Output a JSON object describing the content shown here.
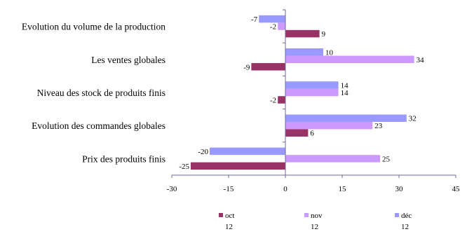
{
  "chart_data": {
    "type": "bar",
    "orientation": "horizontal",
    "categories": [
      "Evolution du volume de la production",
      "Les ventes globales",
      "Niveau des stock de produits finis",
      "Evolution des commandes globales",
      "Prix des produits finis"
    ],
    "series": [
      {
        "name": "oct",
        "sublabel": "12",
        "color": "#993366",
        "values": [
          9,
          -9,
          -2,
          6,
          -25
        ]
      },
      {
        "name": "nov",
        "sublabel": "12",
        "color": "#cc99ff",
        "values": [
          -2,
          34,
          14,
          23,
          25
        ]
      },
      {
        "name": "déc",
        "sublabel": "12",
        "color": "#9999ff",
        "values": [
          -7,
          10,
          14,
          32,
          -20
        ]
      }
    ],
    "xlim": [
      -30,
      45
    ],
    "xticks": [
      -30,
      -15,
      0,
      15,
      30,
      45
    ],
    "grid": false,
    "legend": "bottom",
    "title": "",
    "xlabel": "",
    "ylabel": ""
  }
}
